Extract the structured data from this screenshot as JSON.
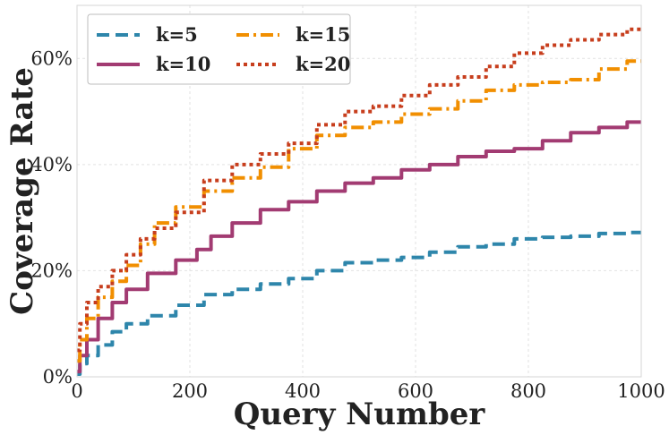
{
  "chart_data": {
    "type": "line",
    "title": "",
    "xlabel": "Query Number",
    "ylabel": "Coverage Rate",
    "xlim": [
      0,
      1000
    ],
    "ylim": [
      0,
      70
    ],
    "xticks": [
      0,
      200,
      400,
      600,
      800,
      1000
    ],
    "yticks": [
      0,
      20,
      40,
      60
    ],
    "xtick_labels": [
      "0",
      "200",
      "400",
      "600",
      "800",
      "1000"
    ],
    "ytick_labels": [
      "0%",
      "20%",
      "40%",
      "60%"
    ],
    "grid": true,
    "legend": {
      "placement": "top-left",
      "columns": 2
    },
    "series": [
      {
        "name": "k=5",
        "color": "#2e86ab",
        "dash": "dashed",
        "x": [
          0,
          10,
          25,
          50,
          75,
          100,
          150,
          200,
          250,
          300,
          350,
          400,
          450,
          500,
          550,
          600,
          650,
          700,
          750,
          800,
          850,
          900,
          950,
          1000
        ],
        "y": [
          0.5,
          2.5,
          4,
          6,
          8.5,
          10,
          11.5,
          13.5,
          15.5,
          16.5,
          17.5,
          18.5,
          20,
          21.5,
          22,
          22.5,
          23.5,
          24.5,
          25,
          26,
          26.3,
          26.5,
          27,
          27.2
        ]
      },
      {
        "name": "k=10",
        "color": "#a23b72",
        "dash": "solid",
        "x": [
          0,
          10,
          25,
          50,
          75,
          100,
          150,
          200,
          225,
          250,
          300,
          350,
          400,
          450,
          500,
          550,
          600,
          650,
          700,
          750,
          800,
          850,
          900,
          950,
          1000
        ],
        "y": [
          1,
          4,
          7,
          11,
          14,
          16.5,
          19.5,
          22,
          24,
          26.5,
          29,
          31.5,
          33,
          35,
          36.5,
          37.5,
          39,
          40,
          41.5,
          42.5,
          43,
          44.5,
          46,
          47,
          48
        ]
      },
      {
        "name": "k=15",
        "color": "#f18f01",
        "dash": "dashdot",
        "x": [
          0,
          10,
          25,
          50,
          75,
          100,
          125,
          150,
          200,
          250,
          300,
          350,
          400,
          450,
          500,
          550,
          600,
          650,
          700,
          750,
          800,
          850,
          900,
          950,
          1000
        ],
        "y": [
          3,
          7,
          11,
          15,
          18,
          21,
          25,
          29,
          32,
          35,
          37.5,
          39.5,
          43,
          45.5,
          47,
          48,
          49.5,
          50.5,
          52,
          54,
          55,
          55.5,
          56,
          58,
          59.5
        ]
      },
      {
        "name": "k=20",
        "color": "#c73e1d",
        "dash": "dotted",
        "x": [
          0,
          10,
          25,
          50,
          75,
          100,
          125,
          150,
          200,
          250,
          300,
          350,
          400,
          450,
          500,
          550,
          600,
          650,
          700,
          750,
          800,
          850,
          900,
          950,
          1000
        ],
        "y": [
          5,
          10,
          14,
          17,
          20,
          23,
          26,
          28,
          31,
          37,
          40,
          42,
          44,
          47.5,
          50,
          51,
          53,
          55,
          56.5,
          58.5,
          61,
          62.5,
          63.5,
          64.5,
          65.5
        ]
      }
    ]
  }
}
